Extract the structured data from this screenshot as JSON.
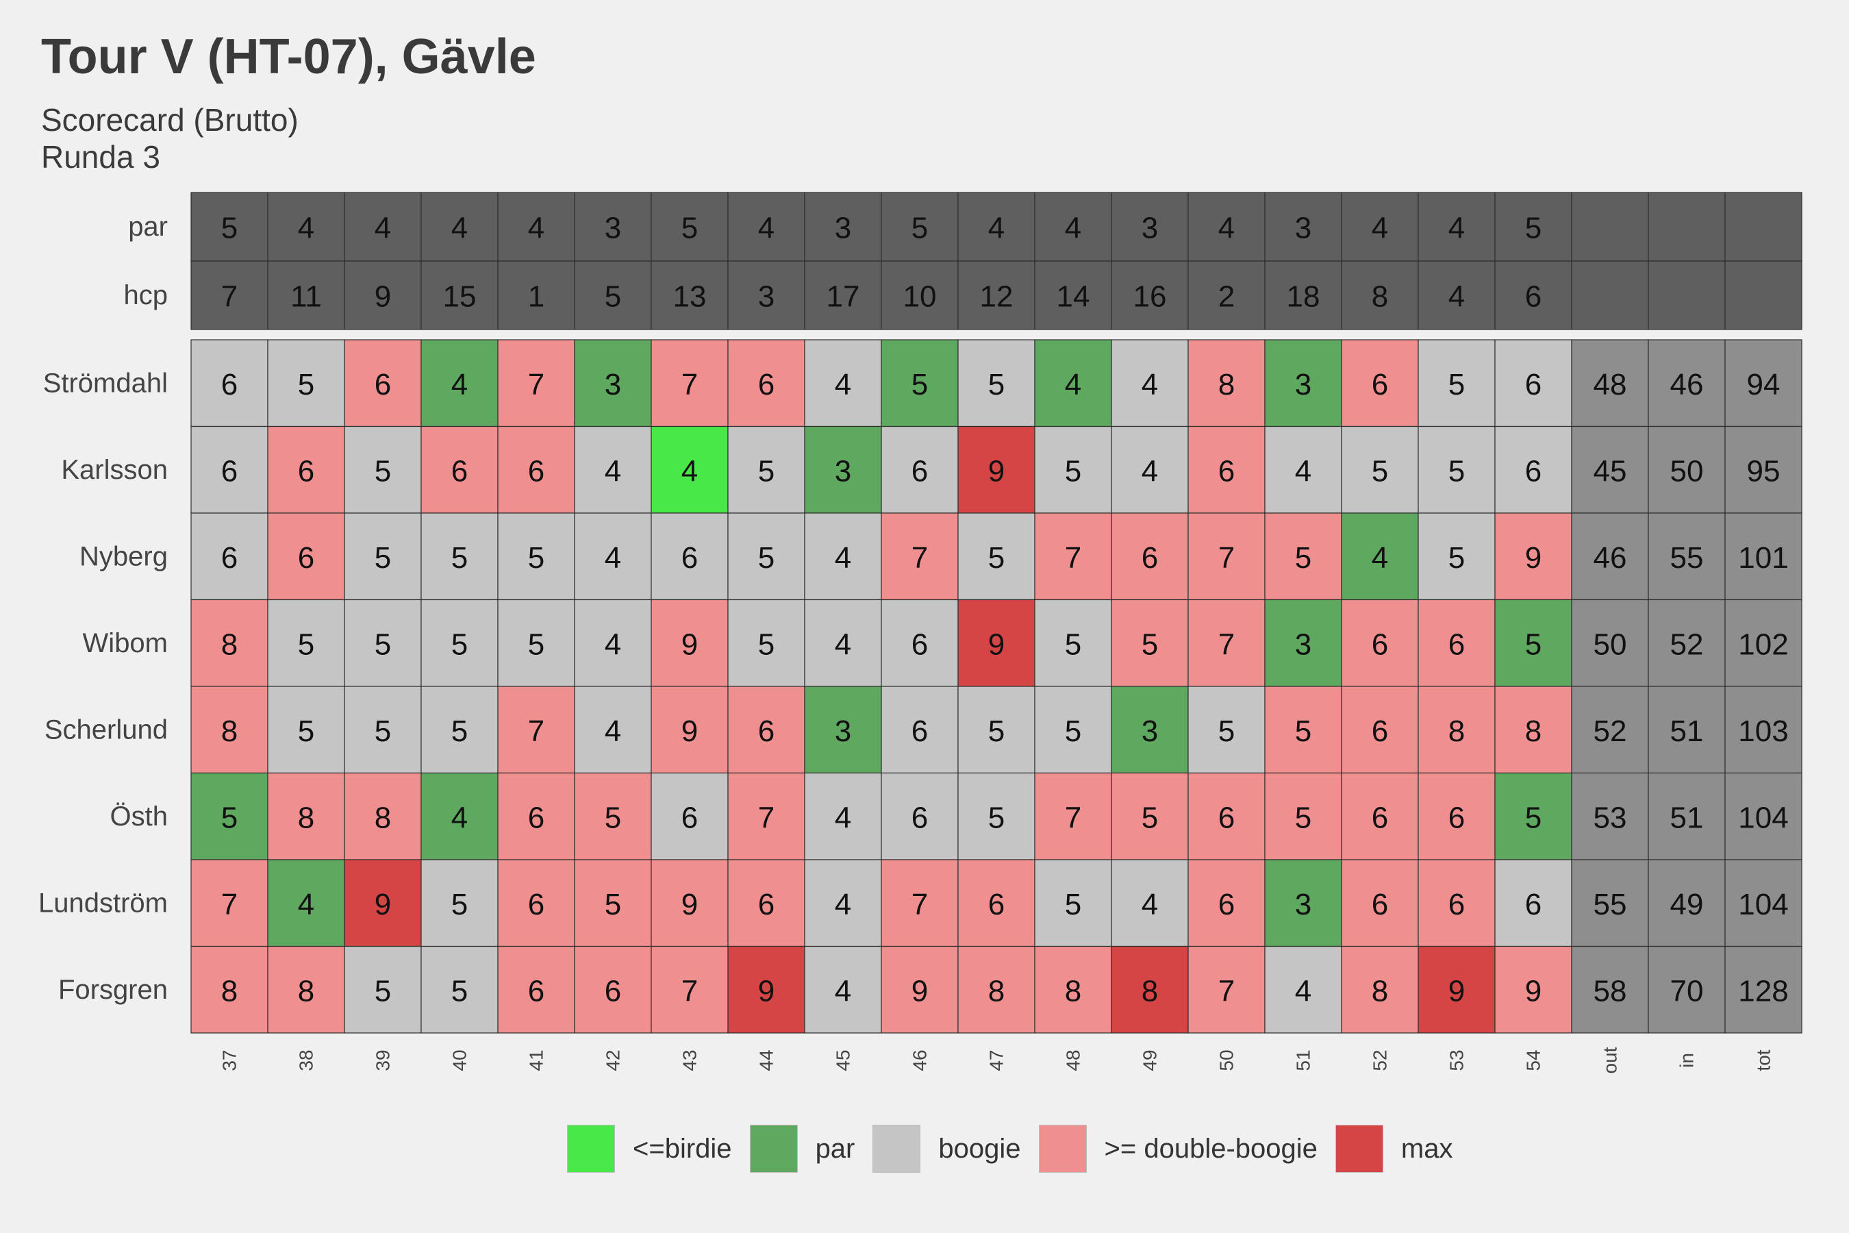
{
  "title": "Tour V (HT-07), Gävle",
  "subtitle": "Scorecard (Brutto)",
  "subtitle2": "Runda 3",
  "colors": {
    "background": "#f0f0f0",
    "header": "#5f5f5f",
    "totals": "#8e8e8e",
    "birdie": "#47e847",
    "par": "#5fa85f",
    "boogie": "#c5c5c5",
    "double": "#ef8f8f",
    "max": "#d64545"
  },
  "chart_data": {
    "type": "heatmap",
    "title": "Tour V (HT-07), Gävle",
    "holes": [
      "37",
      "38",
      "39",
      "40",
      "41",
      "42",
      "43",
      "44",
      "45",
      "46",
      "47",
      "48",
      "49",
      "50",
      "51",
      "52",
      "53",
      "54"
    ],
    "total_columns": [
      "out",
      "in",
      "tot"
    ],
    "header_rows": [
      {
        "label": "par",
        "values": [
          5,
          4,
          4,
          4,
          4,
          3,
          5,
          4,
          3,
          5,
          4,
          4,
          3,
          4,
          3,
          4,
          4,
          5
        ]
      },
      {
        "label": "hcp",
        "values": [
          7,
          11,
          9,
          15,
          1,
          5,
          13,
          3,
          17,
          10,
          12,
          14,
          16,
          2,
          18,
          8,
          4,
          6
        ]
      }
    ],
    "players": [
      {
        "name": "Strömdahl",
        "scores": [
          6,
          5,
          6,
          4,
          7,
          3,
          7,
          6,
          4,
          5,
          5,
          4,
          4,
          8,
          3,
          6,
          5,
          6
        ],
        "categories": [
          "boogie",
          "boogie",
          "double",
          "par",
          "double",
          "par",
          "double",
          "double",
          "boogie",
          "par",
          "boogie",
          "par",
          "boogie",
          "double",
          "par",
          "double",
          "boogie",
          "boogie"
        ],
        "totals": [
          48,
          46,
          94
        ]
      },
      {
        "name": "Karlsson",
        "scores": [
          6,
          6,
          5,
          6,
          6,
          4,
          4,
          5,
          3,
          6,
          9,
          5,
          4,
          6,
          4,
          5,
          5,
          6
        ],
        "categories": [
          "boogie",
          "double",
          "boogie",
          "double",
          "double",
          "boogie",
          "birdie",
          "boogie",
          "par",
          "boogie",
          "max",
          "boogie",
          "boogie",
          "double",
          "boogie",
          "boogie",
          "boogie",
          "boogie"
        ],
        "totals": [
          45,
          50,
          95
        ]
      },
      {
        "name": "Nyberg",
        "scores": [
          6,
          6,
          5,
          5,
          5,
          4,
          6,
          5,
          4,
          7,
          5,
          7,
          6,
          7,
          5,
          4,
          5,
          9
        ],
        "categories": [
          "boogie",
          "double",
          "boogie",
          "boogie",
          "boogie",
          "boogie",
          "boogie",
          "boogie",
          "boogie",
          "double",
          "boogie",
          "double",
          "double",
          "double",
          "double",
          "par",
          "boogie",
          "double"
        ],
        "totals": [
          46,
          55,
          101
        ]
      },
      {
        "name": "Wibom",
        "scores": [
          8,
          5,
          5,
          5,
          5,
          4,
          9,
          5,
          4,
          6,
          9,
          5,
          5,
          7,
          3,
          6,
          6,
          5
        ],
        "categories": [
          "double",
          "boogie",
          "boogie",
          "boogie",
          "boogie",
          "boogie",
          "double",
          "boogie",
          "boogie",
          "boogie",
          "max",
          "boogie",
          "double",
          "double",
          "par",
          "double",
          "double",
          "par"
        ],
        "totals": [
          50,
          52,
          102
        ]
      },
      {
        "name": "Scherlund",
        "scores": [
          8,
          5,
          5,
          5,
          7,
          4,
          9,
          6,
          3,
          6,
          5,
          5,
          3,
          5,
          5,
          6,
          8,
          8
        ],
        "categories": [
          "double",
          "boogie",
          "boogie",
          "boogie",
          "double",
          "boogie",
          "double",
          "double",
          "par",
          "boogie",
          "boogie",
          "boogie",
          "par",
          "boogie",
          "double",
          "double",
          "double",
          "double"
        ],
        "totals": [
          52,
          51,
          103
        ]
      },
      {
        "name": "Östh",
        "scores": [
          5,
          8,
          8,
          4,
          6,
          5,
          6,
          7,
          4,
          6,
          5,
          7,
          5,
          6,
          5,
          6,
          6,
          5
        ],
        "categories": [
          "par",
          "double",
          "double",
          "par",
          "double",
          "double",
          "boogie",
          "double",
          "boogie",
          "boogie",
          "boogie",
          "double",
          "double",
          "double",
          "double",
          "double",
          "double",
          "par"
        ],
        "totals": [
          53,
          51,
          104
        ]
      },
      {
        "name": "Lundström",
        "scores": [
          7,
          4,
          9,
          5,
          6,
          5,
          9,
          6,
          4,
          7,
          6,
          5,
          4,
          6,
          3,
          6,
          6,
          6
        ],
        "categories": [
          "double",
          "par",
          "max",
          "boogie",
          "double",
          "double",
          "double",
          "double",
          "boogie",
          "double",
          "double",
          "boogie",
          "boogie",
          "double",
          "par",
          "double",
          "double",
          "boogie"
        ],
        "totals": [
          55,
          49,
          104
        ]
      },
      {
        "name": "Forsgren",
        "scores": [
          8,
          8,
          5,
          5,
          6,
          6,
          7,
          9,
          4,
          9,
          8,
          8,
          8,
          7,
          4,
          8,
          9,
          9
        ],
        "categories": [
          "double",
          "double",
          "boogie",
          "boogie",
          "double",
          "double",
          "double",
          "max",
          "boogie",
          "double",
          "double",
          "double",
          "max",
          "double",
          "boogie",
          "double",
          "max",
          "double"
        ],
        "totals": [
          58,
          70,
          128
        ]
      }
    ],
    "legend": [
      {
        "key": "birdie",
        "label": "<=birdie"
      },
      {
        "key": "par",
        "label": "par"
      },
      {
        "key": "boogie",
        "label": "boogie"
      },
      {
        "key": "double",
        "label": ">= double-boogie"
      },
      {
        "key": "max",
        "label": "max"
      }
    ],
    "legend_position": "bottom"
  }
}
